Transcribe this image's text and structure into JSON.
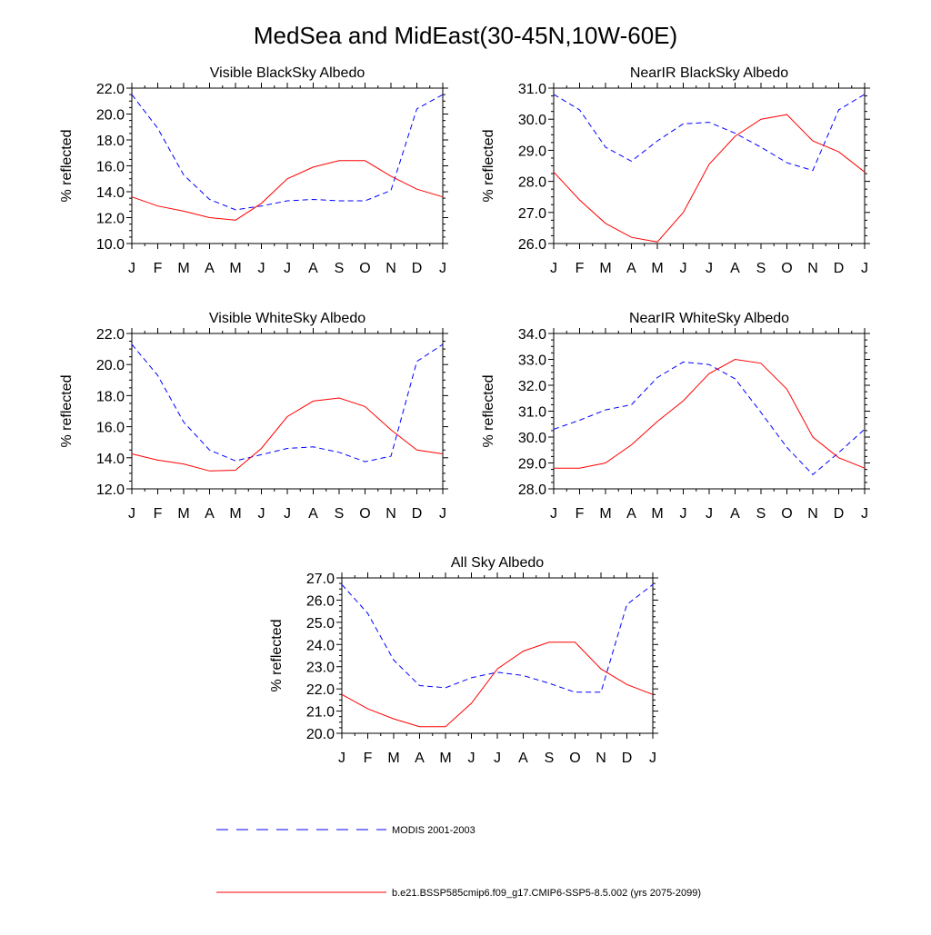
{
  "title": "MedSea and MidEast(30-45N,10W-60E)",
  "legend": [
    {
      "name": "MODIS 2001-2003",
      "color": "#0000ff",
      "dash": true
    },
    {
      "name": "b.e21.BSSP585cmip6.f09_g17.CMIP6-SSP5-8.5.002 (yrs 2075-2099)",
      "color": "#ff0000",
      "dash": false
    }
  ],
  "chart_data": [
    {
      "type": "line",
      "title": "Visible BlackSky Albedo",
      "ylabel": "% reflected",
      "categories": [
        "J",
        "F",
        "M",
        "A",
        "M",
        "J",
        "J",
        "A",
        "S",
        "O",
        "N",
        "D",
        "J"
      ],
      "ylim": [
        10.0,
        22.0
      ],
      "yticks": [
        "10.0",
        "12.0",
        "14.0",
        "16.0",
        "18.0",
        "20.0",
        "22.0"
      ],
      "series": [
        {
          "name": "MODIS 2001-2003",
          "color": "#0000ff",
          "dash": true,
          "values": [
            21.5,
            18.9,
            15.3,
            13.4,
            12.6,
            12.9,
            13.3,
            13.4,
            13.3,
            13.3,
            14.1,
            20.4,
            21.5
          ]
        },
        {
          "name": "b.e21.BSSP585cmip6.f09_g17.CMIP6-SSP5-8.5.002 (yrs 2075-2099)",
          "color": "#ff0000",
          "dash": false,
          "values": [
            13.6,
            12.9,
            12.5,
            12.0,
            11.8,
            13.1,
            15.0,
            15.9,
            16.4,
            16.4,
            15.2,
            14.2,
            13.6
          ]
        }
      ]
    },
    {
      "type": "line",
      "title": "NearIR BlackSky Albedo",
      "ylabel": "% reflected",
      "categories": [
        "J",
        "F",
        "M",
        "A",
        "M",
        "J",
        "J",
        "A",
        "S",
        "O",
        "N",
        "D",
        "J"
      ],
      "ylim": [
        26.0,
        31.0
      ],
      "yticks": [
        "26.0",
        "27.0",
        "28.0",
        "29.0",
        "30.0",
        "31.0"
      ],
      "series": [
        {
          "name": "MODIS 2001-2003",
          "color": "#0000ff",
          "dash": true,
          "values": [
            30.8,
            30.3,
            29.1,
            28.65,
            29.3,
            29.85,
            29.9,
            29.55,
            29.1,
            28.6,
            28.35,
            30.3,
            30.8
          ]
        },
        {
          "name": "b.e21.BSSP585cmip6.f09_g17.CMIP6-SSP5-8.5.002 (yrs 2075-2099)",
          "color": "#ff0000",
          "dash": false,
          "values": [
            28.3,
            27.4,
            26.65,
            26.2,
            26.05,
            27.0,
            28.55,
            29.45,
            30.0,
            30.15,
            29.3,
            28.95,
            28.3
          ]
        }
      ]
    },
    {
      "type": "line",
      "title": "Visible WhiteSky Albedo",
      "ylabel": "% reflected",
      "categories": [
        "J",
        "F",
        "M",
        "A",
        "M",
        "J",
        "J",
        "A",
        "S",
        "O",
        "N",
        "D",
        "J"
      ],
      "ylim": [
        12.0,
        22.0
      ],
      "yticks": [
        "12.0",
        "14.0",
        "16.0",
        "18.0",
        "20.0",
        "22.0"
      ],
      "series": [
        {
          "name": "MODIS 2001-2003",
          "color": "#0000ff",
          "dash": true,
          "values": [
            21.3,
            19.3,
            16.3,
            14.5,
            13.8,
            14.2,
            14.6,
            14.7,
            14.35,
            13.75,
            14.1,
            20.2,
            21.3
          ]
        },
        {
          "name": "b.e21.BSSP585cmip6.f09_g17.CMIP6-SSP5-8.5.002 (yrs 2075-2099)",
          "color": "#ff0000",
          "dash": false,
          "values": [
            14.25,
            13.85,
            13.6,
            13.15,
            13.2,
            14.6,
            16.65,
            17.65,
            17.85,
            17.3,
            15.8,
            14.5,
            14.25
          ]
        }
      ]
    },
    {
      "type": "line",
      "title": "NearIR WhiteSky Albedo",
      "ylabel": "% reflected",
      "categories": [
        "J",
        "F",
        "M",
        "A",
        "M",
        "J",
        "J",
        "A",
        "S",
        "O",
        "N",
        "D",
        "J"
      ],
      "ylim": [
        28.0,
        34.0
      ],
      "yticks": [
        "28.0",
        "29.0",
        "30.0",
        "31.0",
        "32.0",
        "33.0",
        "34.0"
      ],
      "series": [
        {
          "name": "MODIS 2001-2003",
          "color": "#0000ff",
          "dash": true,
          "values": [
            30.3,
            30.65,
            31.05,
            31.25,
            32.3,
            32.9,
            32.8,
            32.25,
            30.95,
            29.6,
            28.55,
            29.4,
            30.3
          ]
        },
        {
          "name": "b.e21.BSSP585cmip6.f09_g17.CMIP6-SSP5-8.5.002 (yrs 2075-2099)",
          "color": "#ff0000",
          "dash": false,
          "values": [
            28.8,
            28.8,
            29.0,
            29.7,
            30.6,
            31.4,
            32.45,
            33.0,
            32.85,
            31.85,
            30.0,
            29.2,
            28.8
          ]
        }
      ]
    },
    {
      "type": "line",
      "title": "All Sky Albedo",
      "ylabel": "% reflected",
      "categories": [
        "J",
        "F",
        "M",
        "A",
        "M",
        "J",
        "J",
        "A",
        "S",
        "O",
        "N",
        "D",
        "J"
      ],
      "ylim": [
        20.0,
        27.0
      ],
      "yticks": [
        "20.0",
        "21.0",
        "22.0",
        "23.0",
        "24.0",
        "25.0",
        "26.0",
        "27.0"
      ],
      "series": [
        {
          "name": "MODIS 2001-2003",
          "color": "#0000ff",
          "dash": true,
          "values": [
            26.7,
            25.4,
            23.3,
            22.15,
            22.05,
            22.5,
            22.75,
            22.6,
            22.25,
            21.85,
            21.85,
            25.8,
            26.7
          ]
        },
        {
          "name": "b.e21.BSSP585cmip6.f09_g17.CMIP6-SSP5-8.5.002 (yrs 2075-2099)",
          "color": "#ff0000",
          "dash": false,
          "values": [
            21.75,
            21.1,
            20.65,
            20.3,
            20.3,
            21.35,
            22.9,
            23.7,
            24.1,
            24.1,
            22.9,
            22.2,
            21.75
          ]
        }
      ]
    }
  ]
}
